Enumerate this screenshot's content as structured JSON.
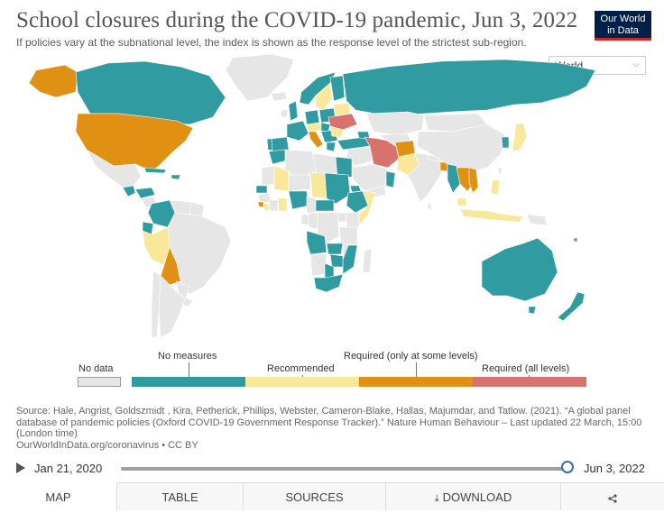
{
  "header": {
    "title": "School closures during the COVID-19 pandemic, Jun 3, 2022",
    "subtitle": "If policies vary at the subnational level, the index is shown as the response level of the strictest sub-region.",
    "logo_line1": "Our World",
    "logo_line2": "in Data"
  },
  "region_select": {
    "value": "World"
  },
  "colors": {
    "no_data": "#e6e6e6",
    "no_measures": "#319ba2",
    "recommended": "#f9e79a",
    "required_some": "#e09013",
    "required_all": "#d9726c",
    "ocean": "#ffffff",
    "land_border": "#ffffff"
  },
  "legend": {
    "no_data": "No data",
    "no_measures": "No measures",
    "recommended": "Recommended",
    "required_some": "Required (only at some levels)",
    "required_all": "Required (all levels)"
  },
  "source": {
    "text": "Source: Hale, Angrist, Goldszmidt , Kira, Petherick, Phillips, Webster, Cameron-Blake, Hallas, Majumdar, and Tatlow. (2021). “A global panel database of pandemic policies (Oxford COVID-19 Government Response Tracker).” Nature Human Behaviour – Last updated 22 March, 15:00 (London time)",
    "link": "OurWorldInData.org/coronavirus • CC BY"
  },
  "timeline": {
    "start": "Jan 21, 2020",
    "end": "Jun 3, 2022",
    "progress": 1.0
  },
  "tabs": [
    {
      "label": "MAP"
    },
    {
      "label": "TABLE"
    },
    {
      "label": "SOURCES"
    },
    {
      "label": "DOWNLOAD"
    }
  ]
}
